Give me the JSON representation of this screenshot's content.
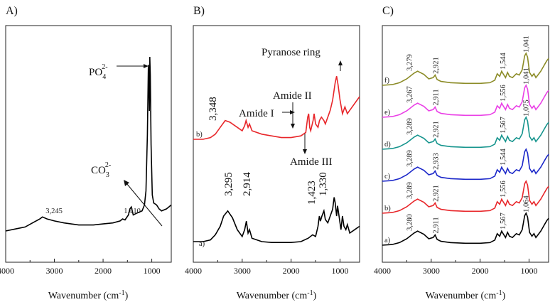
{
  "chart_data": [
    {
      "type": "line",
      "panel": "A)",
      "xlabel_main": "Wavenumber (cm",
      "xlabel_sup": "-1",
      "xlabel_end": ")",
      "xlim": [
        4000,
        600
      ],
      "xticks": [
        4000,
        3000,
        2000,
        1000
      ],
      "x_reversed": true,
      "series": [
        {
          "color": "#000000",
          "points": [
            [
              4000,
              0.12
            ],
            [
              3800,
              0.13
            ],
            [
              3600,
              0.14
            ],
            [
              3450,
              0.16
            ],
            [
              3300,
              0.18
            ],
            [
              3245,
              0.19
            ],
            [
              3150,
              0.18
            ],
            [
              3000,
              0.17
            ],
            [
              2800,
              0.16
            ],
            [
              2500,
              0.15
            ],
            [
              2200,
              0.15
            ],
            [
              2000,
              0.155
            ],
            [
              1800,
              0.16
            ],
            [
              1650,
              0.17
            ],
            [
              1600,
              0.18
            ],
            [
              1550,
              0.175
            ],
            [
              1480,
              0.2
            ],
            [
              1450,
              0.23
            ],
            [
              1420,
              0.24
            ],
            [
              1410,
              0.23
            ],
            [
              1380,
              0.2
            ],
            [
              1300,
              0.21
            ],
            [
              1200,
              0.22
            ],
            [
              1150,
              0.25
            ],
            [
              1120,
              0.32
            ],
            [
              1090,
              0.6
            ],
            [
              1070,
              0.95
            ],
            [
              1050,
              0.72
            ],
            [
              1040,
              0.99
            ],
            [
              1030,
              0.9
            ],
            [
              1015,
              0.55
            ],
            [
              990,
              0.3
            ],
            [
              960,
              0.26
            ],
            [
              900,
              0.25
            ],
            [
              850,
              0.23
            ],
            [
              800,
              0.22
            ],
            [
              700,
              0.23
            ],
            [
              650,
              0.24
            ],
            [
              600,
              0.25
            ]
          ]
        }
      ],
      "annotations": [
        {
          "text": "3,245",
          "x": 3245
        },
        {
          "text": "1,410",
          "x": 1410
        },
        {
          "base": "PO",
          "sub": "4",
          "sup": "2-"
        },
        {
          "base": "CO",
          "sub": "3",
          "sup": "2-"
        }
      ]
    },
    {
      "type": "line",
      "panel": "B)",
      "xlabel_main": "Wavenumber (cm",
      "xlabel_sup": "-1",
      "xlabel_end": ")",
      "xlim": [
        4000,
        600
      ],
      "xticks": [
        4000,
        3000,
        2000,
        1000
      ],
      "x_reversed": true,
      "series": [
        {
          "name": "b)",
          "color": "#e8262a",
          "points": [
            [
              4000,
              0.65
            ],
            [
              3800,
              0.65
            ],
            [
              3650,
              0.66
            ],
            [
              3550,
              0.68
            ],
            [
              3450,
              0.72
            ],
            [
              3348,
              0.76
            ],
            [
              3250,
              0.75
            ],
            [
              3100,
              0.72
            ],
            [
              3000,
              0.7
            ],
            [
              2950,
              0.73
            ],
            [
              2920,
              0.76
            ],
            [
              2880,
              0.72
            ],
            [
              2850,
              0.74
            ],
            [
              2800,
              0.7
            ],
            [
              2600,
              0.68
            ],
            [
              2400,
              0.67
            ],
            [
              2200,
              0.66
            ],
            [
              2000,
              0.66
            ],
            [
              1800,
              0.67
            ],
            [
              1700,
              0.69
            ],
            [
              1660,
              0.78
            ],
            [
              1640,
              0.8
            ],
            [
              1620,
              0.72
            ],
            [
              1600,
              0.7
            ],
            [
              1550,
              0.76
            ],
            [
              1530,
              0.8
            ],
            [
              1500,
              0.74
            ],
            [
              1450,
              0.72
            ],
            [
              1420,
              0.76
            ],
            [
              1380,
              0.78
            ],
            [
              1330,
              0.76
            ],
            [
              1300,
              0.74
            ],
            [
              1250,
              0.78
            ],
            [
              1200,
              0.82
            ],
            [
              1150,
              0.88
            ],
            [
              1100,
              0.98
            ],
            [
              1070,
              1.02
            ],
            [
              1040,
              0.97
            ],
            [
              1000,
              0.88
            ],
            [
              950,
              0.8
            ],
            [
              900,
              0.84
            ],
            [
              850,
              0.8
            ],
            [
              800,
              0.82
            ],
            [
              700,
              0.86
            ],
            [
              600,
              0.9
            ]
          ]
        },
        {
          "name": "a)",
          "color": "#000000",
          "points": [
            [
              4000,
              0.05
            ],
            [
              3800,
              0.05
            ],
            [
              3650,
              0.06
            ],
            [
              3550,
              0.09
            ],
            [
              3450,
              0.14
            ],
            [
              3380,
              0.2
            ],
            [
              3295,
              0.23
            ],
            [
              3200,
              0.19
            ],
            [
              3100,
              0.12
            ],
            [
              3000,
              0.08
            ],
            [
              2950,
              0.12
            ],
            [
              2914,
              0.17
            ],
            [
              2880,
              0.1
            ],
            [
              2850,
              0.12
            ],
            [
              2800,
              0.07
            ],
            [
              2600,
              0.05
            ],
            [
              2400,
              0.045
            ],
            [
              2200,
              0.045
            ],
            [
              2000,
              0.045
            ],
            [
              1800,
              0.05
            ],
            [
              1650,
              0.07
            ],
            [
              1560,
              0.09
            ],
            [
              1500,
              0.08
            ],
            [
              1450,
              0.14
            ],
            [
              1423,
              0.2
            ],
            [
              1400,
              0.17
            ],
            [
              1370,
              0.2
            ],
            [
              1330,
              0.23
            ],
            [
              1300,
              0.18
            ],
            [
              1250,
              0.16
            ],
            [
              1200,
              0.2
            ],
            [
              1150,
              0.24
            ],
            [
              1120,
              0.31
            ],
            [
              1100,
              0.28
            ],
            [
              1070,
              0.2
            ],
            [
              1050,
              0.26
            ],
            [
              1020,
              0.2
            ],
            [
              980,
              0.12
            ],
            [
              950,
              0.2
            ],
            [
              920,
              0.14
            ],
            [
              880,
              0.12
            ],
            [
              850,
              0.15
            ],
            [
              800,
              0.1
            ],
            [
              700,
              0.12
            ],
            [
              600,
              0.14
            ]
          ]
        }
      ],
      "annotations": [
        {
          "text": "3,348",
          "x": 3348
        },
        {
          "text": "Amide I"
        },
        {
          "text": "Amide II"
        },
        {
          "text": "Amide III"
        },
        {
          "text": "Pyranose ring"
        },
        {
          "text": "3,295",
          "x": 3295
        },
        {
          "text": "2,914",
          "x": 2914
        },
        {
          "text": "1,423",
          "x": 1423
        },
        {
          "text": "1,330",
          "x": 1330
        }
      ]
    },
    {
      "type": "line",
      "panel": "C)",
      "xlabel_main": "Wavenumber (cm",
      "xlabel_sup": "-1",
      "xlabel_end": ")",
      "xlim": [
        4000,
        600
      ],
      "xticks": [
        4000,
        3000,
        2000,
        1000
      ],
      "x_reversed": true,
      "series": [
        {
          "name": "f)",
          "color": "#8b8b26",
          "offset": 5,
          "peaks": [
            "3,279",
            "2,921",
            "1,544",
            "1,041"
          ]
        },
        {
          "name": "e)",
          "color": "#ea3fe6",
          "offset": 4,
          "peaks": [
            "3,267",
            "2,911",
            "1,556",
            "1,041"
          ]
        },
        {
          "name": "d)",
          "color": "#15948d",
          "offset": 3,
          "peaks": [
            "3,289",
            "2,921",
            "1,567",
            "1,075"
          ]
        },
        {
          "name": "c)",
          "color": "#1b27c9",
          "offset": 2,
          "peaks": [
            "3,289",
            "2,933",
            "1,544"
          ]
        },
        {
          "name": "b)",
          "color": "#e8262a",
          "offset": 1,
          "peaks": [
            "3,289",
            "2,921",
            "1,556"
          ]
        },
        {
          "name": "a)",
          "color": "#000000",
          "offset": 0,
          "peaks": [
            "3,280",
            "2,911",
            "1,567",
            "1,064"
          ]
        }
      ]
    }
  ]
}
